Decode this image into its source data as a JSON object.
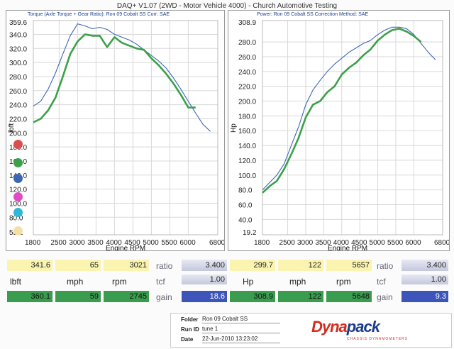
{
  "header": {
    "title": "DAQ+ V1.07 (2WD - Motor Vehicle 4000) - Church Automotive Testing"
  },
  "left_panel": {
    "subtitle": "Torque (Axle Torque + Gear Ratio): Ron 09 Cobalt SS    Corr: SAE",
    "y_label": "lbft",
    "x_label": "Engine RPM",
    "y_top_label": "359.6",
    "y_bottom_label": "55.1",
    "y_ticks": [
      "340.0",
      "320.0",
      "300.0",
      "280.0",
      "260.0",
      "240.0",
      "220.0",
      "200.0",
      "180.0",
      "160.0",
      "140.0",
      "120.0",
      "100.0",
      "80.0"
    ],
    "x_ticks": [
      "1800",
      "2500",
      "3000",
      "3500",
      "4000",
      "4500",
      "5000",
      "5500",
      "6000",
      "6800"
    ]
  },
  "right_panel": {
    "subtitle": "Power: Ron 09 Cobalt SS    Correction Method: SAE",
    "y_label": "Hp",
    "x_label": "Engine RPM",
    "y_top_label": "308.9",
    "y_bottom_label": "19.2",
    "y_ticks": [
      "280.0",
      "260.0",
      "240.0",
      "220.0",
      "200.0",
      "180.0",
      "160.0",
      "140.0",
      "120.0",
      "100.0",
      "80.0",
      "60.0",
      "40.0"
    ],
    "x_ticks": [
      "1800",
      "2500",
      "3000",
      "3500",
      "4000",
      "4500",
      "5000",
      "5500",
      "6000",
      "6800"
    ]
  },
  "legend_dots": [
    {
      "color": "#d94f4f",
      "icon": "red-dot-icon"
    },
    {
      "color": "#3ca04a",
      "icon": "green-dot-icon"
    },
    {
      "color": "#3c66b5",
      "icon": "blue-dot-icon"
    },
    {
      "color": "#e04cc8",
      "icon": "magenta-dot-icon"
    },
    {
      "color": "#2fb6d8",
      "icon": "cyan-dot-icon"
    },
    {
      "color": "#f6dfa6",
      "icon": "tan-dot-icon"
    }
  ],
  "stats": {
    "row1": {
      "torque": "341.6",
      "mph": "65",
      "rpm": "3021",
      "ratio_label": "ratio",
      "ratio": "3.400",
      "power": "299.7",
      "mph2": "122",
      "rpm2": "5657",
      "ratio_label2": "ratio",
      "ratio2": "3.400"
    },
    "row2": {
      "torque_label": "lbft",
      "mph_label": "mph",
      "rpm_label": "rpm",
      "tcf_label": "tcf",
      "tcf": "1.00",
      "power_label": "Hp",
      "mph_label2": "mph",
      "rpm_label2": "rpm",
      "tcf_label2": "tcf",
      "tcf2": "1.00"
    },
    "row3": {
      "torque": "360.1",
      "mph": "59",
      "rpm": "2745",
      "gain_label": "gain",
      "gain": "18.6",
      "power": "308.9",
      "mph2": "122",
      "rpm2": "5648",
      "gain_label2": "gain",
      "gain2": "9.3"
    }
  },
  "info": {
    "folder_label": "Folder",
    "folder": "Ron 09 Cobalt SS",
    "runid_label": "Run ID",
    "runid": "tune 1",
    "date_label": "Date",
    "date": "22-Jun-2010 13:23:02",
    "logo_main": "Dyna",
    "logo_accent": "pack",
    "logo_sub": "CHASSIS DYNAMOMETERS"
  },
  "chart_data": [
    {
      "type": "line",
      "title": "Torque (Axle Torque + Gear Ratio): Ron 09 Cobalt SS",
      "xlabel": "Engine RPM",
      "ylabel": "lbft",
      "xlim": [
        1800,
        6800
      ],
      "ylim": [
        55.1,
        359.6
      ],
      "grid": true,
      "series": [
        {
          "color": "#3c66b5",
          "x": [
            1800,
            2000,
            2200,
            2400,
            2600,
            2800,
            3000,
            3200,
            3400,
            3600,
            3800,
            4000,
            4200,
            4400,
            4600,
            4800,
            5000,
            5200,
            5400,
            5600,
            5800,
            6000,
            6200,
            6400,
            6600
          ],
          "values": [
            238,
            245,
            262,
            285,
            312,
            338,
            355,
            352,
            348,
            350,
            347,
            340,
            336,
            332,
            326,
            318,
            310,
            302,
            292,
            278,
            262,
            245,
            228,
            212,
            202
          ]
        },
        {
          "color": "#3ca04a",
          "x": [
            1800,
            2000,
            2200,
            2400,
            2600,
            2800,
            3000,
            3200,
            3400,
            3600,
            3800,
            4000,
            4200,
            4400,
            4600,
            4800,
            5000,
            5200,
            5400,
            5600,
            5800,
            6000,
            6200
          ],
          "values": [
            215,
            220,
            232,
            250,
            280,
            312,
            330,
            340,
            338,
            338,
            322,
            336,
            328,
            324,
            320,
            318,
            306,
            296,
            284,
            270,
            254,
            236,
            236
          ]
        }
      ]
    },
    {
      "type": "line",
      "title": "Power: Ron 09 Cobalt SS",
      "xlabel": "Engine RPM",
      "ylabel": "Hp",
      "xlim": [
        1800,
        6800
      ],
      "ylim": [
        19.2,
        308.9
      ],
      "grid": true,
      "series": [
        {
          "color": "#3c66b5",
          "x": [
            1800,
            2000,
            2200,
            2400,
            2600,
            2800,
            3000,
            3200,
            3400,
            3600,
            3800,
            4000,
            4200,
            4400,
            4600,
            4800,
            5000,
            5200,
            5400,
            5600,
            5800,
            6000,
            6200,
            6400,
            6600
          ],
          "values": [
            80,
            90,
            100,
            115,
            140,
            165,
            195,
            215,
            228,
            240,
            250,
            258,
            266,
            272,
            278,
            282,
            290,
            296,
            300,
            300,
            298,
            290,
            278,
            266,
            256
          ]
        },
        {
          "color": "#3ca04a",
          "x": [
            1800,
            2000,
            2200,
            2400,
            2600,
            2800,
            3000,
            3200,
            3400,
            3600,
            3800,
            4000,
            4200,
            4400,
            4600,
            4800,
            5000,
            5200,
            5400,
            5600,
            5800,
            6000,
            6200
          ],
          "values": [
            76,
            85,
            92,
            108,
            128,
            150,
            178,
            195,
            200,
            212,
            220,
            236,
            245,
            252,
            262,
            270,
            282,
            290,
            296,
            298,
            294,
            288,
            280
          ]
        }
      ]
    }
  ]
}
